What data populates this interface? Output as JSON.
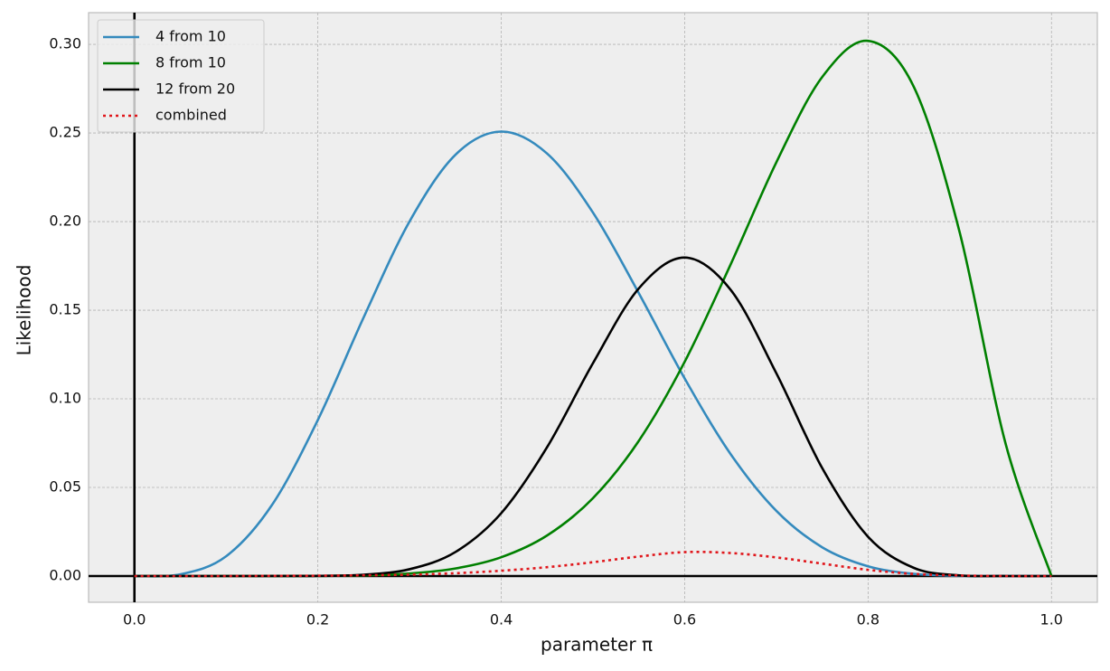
{
  "chart_data": {
    "type": "line",
    "xlabel": "parameter π",
    "ylabel": "Likelihood",
    "x": [
      0,
      0.05,
      0.1,
      0.15,
      0.2,
      0.25,
      0.3,
      0.35,
      0.4,
      0.45,
      0.5,
      0.55,
      0.6,
      0.65,
      0.7,
      0.75,
      0.8,
      0.85,
      0.9,
      0.95,
      1
    ],
    "series": [
      {
        "name": "4 from 10",
        "color": "#348abd",
        "style": "solid",
        "values": [
          0,
          0.000965,
          0.01116,
          0.0401,
          0.08808,
          0.146,
          0.2001,
          0.2377,
          0.2508,
          0.2384,
          0.2051,
          0.1596,
          0.1115,
          0.06891,
          0.03676,
          0.01622,
          0.005505,
          0.001249,
          0.000138,
          2.7e-06,
          0
        ]
      },
      {
        "name": "8 from 10",
        "color": "#008000",
        "style": "solid",
        "values": [
          0,
          0,
          3.6e-07,
          8.33e-06,
          7.37e-05,
          0.000386,
          0.001447,
          0.004281,
          0.01062,
          0.02289,
          0.04395,
          0.0763,
          0.1209,
          0.1757,
          0.2335,
          0.2816,
          0.302,
          0.2759,
          0.1937,
          0.07463,
          0
        ]
      },
      {
        "name": "12 from 20",
        "color": "#000000",
        "style": "solid",
        "values": [
          0,
          0,
          1e-07,
          4.45e-06,
          8.66e-05,
          0.000752,
          0.003859,
          0.01356,
          0.0355,
          0.07273,
          0.1201,
          0.1623,
          0.1797,
          0.1616,
          0.1144,
          0.06089,
          0.02216,
          0.004592,
          0.000356,
          2.7e-06,
          0
        ]
      },
      {
        "name": "combined",
        "color": "#e0161b",
        "style": "dotted",
        "values": [
          0,
          0,
          0,
          0.0001,
          0.0002,
          0.0004,
          0.0008,
          0.0016,
          0.003,
          0.005,
          0.0078,
          0.011,
          0.0135,
          0.013,
          0.0105,
          0.007,
          0.0035,
          0.0012,
          0.0003,
          0,
          0
        ]
      }
    ],
    "xlim": [
      -0.05,
      1.05
    ],
    "ylim": [
      -0.0148,
      0.3179
    ],
    "xticks": [
      {
        "value": 0,
        "label": "0.0"
      },
      0.2,
      0.4,
      0.6,
      0.8,
      {
        "value": 1,
        "label": "1.0"
      }
    ],
    "yticks": [
      {
        "value": 0,
        "label": "0.00"
      },
      {
        "value": 0.05,
        "label": "0.05"
      },
      {
        "value": 0.1,
        "label": "0.10"
      },
      {
        "value": 0.15,
        "label": "0.15"
      },
      {
        "value": 0.2,
        "label": "0.20"
      },
      {
        "value": 0.25,
        "label": "0.25"
      },
      {
        "value": 0.3,
        "label": "0.30"
      }
    ],
    "grid": true,
    "legend": "upper left"
  }
}
